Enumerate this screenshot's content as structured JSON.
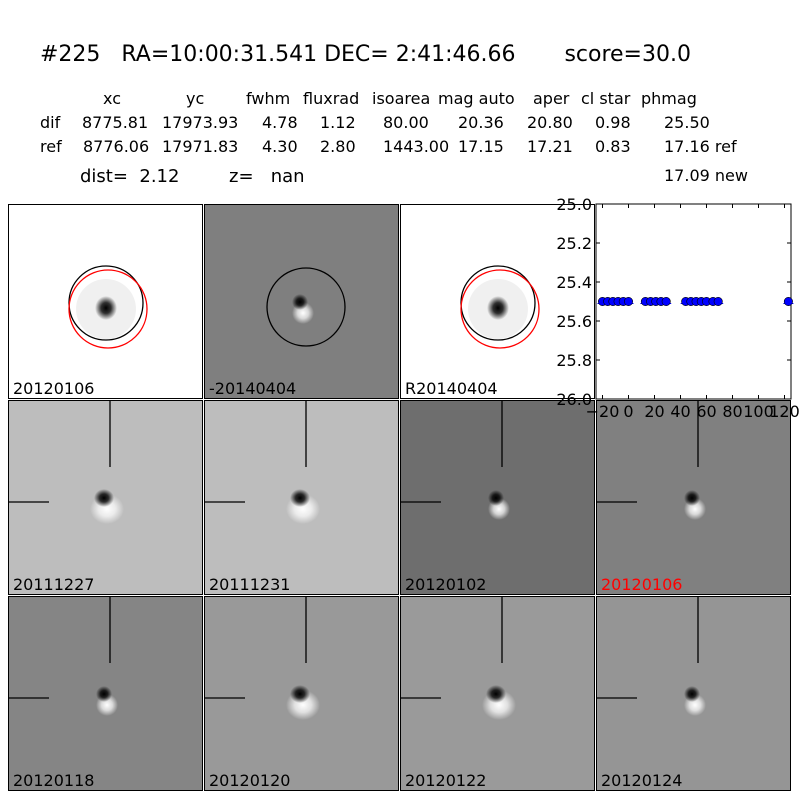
{
  "header": {
    "title": "#225   RA=10:00:31.541 DEC= 2:41:46.66       score=30.0",
    "columns": [
      "xc",
      "yc",
      "fwhm",
      "fluxrad",
      "isoarea",
      "mag auto",
      "aper",
      "cl star",
      "phmag"
    ],
    "rows": [
      {
        "label": "dif",
        "values": [
          "8775.81",
          "17973.93",
          "4.78",
          "1.12",
          "80.00",
          "20.36",
          "20.80",
          "0.98",
          "25.50"
        ]
      },
      {
        "label": "ref",
        "values": [
          "8776.06",
          "17971.83",
          "4.30",
          "2.80",
          "1443.00",
          "17.15",
          "17.21",
          "0.83",
          "17.16 ref"
        ]
      }
    ],
    "extra_phmag": "17.09 new",
    "dist_text": "dist=  2.12",
    "z_text": "z=   nan"
  },
  "panels": [
    {
      "label": "20120106",
      "bg": "#ffffff",
      "circles": "both",
      "marker": "dark",
      "crosshair": false
    },
    {
      "label": "-20140404",
      "bg": "#7f7f7f",
      "circles": "black",
      "marker": "dipole",
      "crosshair": false
    },
    {
      "label": "R20140404",
      "bg": "#ffffff",
      "circles": "both",
      "marker": "dark",
      "crosshair": false
    },
    {
      "label": "20111227",
      "bg": "#bdbdbd",
      "circles": "none",
      "marker": "dipole-wide",
      "crosshair": true
    },
    {
      "label": "20111231",
      "bg": "#bdbdbd",
      "circles": "none",
      "marker": "dipole-wide",
      "crosshair": true
    },
    {
      "label": "20120102",
      "bg": "#6e6e6e",
      "circles": "none",
      "marker": "dipole",
      "crosshair": true
    },
    {
      "label": "20120106",
      "bg": "#808080",
      "circles": "none",
      "marker": "dipole",
      "crosshair": true,
      "highlight": "#ff0000"
    },
    {
      "label": "20120118",
      "bg": "#858585",
      "circles": "none",
      "marker": "dipole",
      "crosshair": true
    },
    {
      "label": "20120120",
      "bg": "#999999",
      "circles": "none",
      "marker": "dipole-wide",
      "crosshair": true
    },
    {
      "label": "20120122",
      "bg": "#9a9a9a",
      "circles": "none",
      "marker": "dipole-wide",
      "crosshair": true
    },
    {
      "label": "20120124",
      "bg": "#959595",
      "circles": "none",
      "marker": "dipole",
      "crosshair": true
    }
  ],
  "chart_data": {
    "type": "scatter",
    "title": "",
    "xlabel": "",
    "ylabel": "",
    "xlim": [
      -25,
      125
    ],
    "ylim": [
      26.0,
      25.0
    ],
    "y_inverted": true,
    "x_ticks": [
      "-20",
      "0",
      "20",
      "40",
      "60",
      "80",
      "100",
      "120"
    ],
    "x_tick_values": [
      -20,
      0,
      20,
      40,
      60,
      80,
      100,
      120
    ],
    "y_ticks": [
      "25.0",
      "25.2",
      "25.4",
      "25.6",
      "25.8",
      "26.0"
    ],
    "y_tick_values": [
      25.0,
      25.2,
      25.4,
      25.6,
      25.8,
      26.0
    ],
    "marker_color": "#0000ff",
    "series": [
      {
        "x": [
          -20,
          -16,
          -12,
          -8,
          -4,
          0,
          13,
          17,
          21,
          25,
          29,
          44,
          48,
          52,
          56,
          60,
          65,
          69,
          123
        ],
        "y": [
          25.5,
          25.5,
          25.5,
          25.5,
          25.5,
          25.5,
          25.5,
          25.5,
          25.5,
          25.5,
          25.5,
          25.5,
          25.5,
          25.5,
          25.5,
          25.5,
          25.5,
          25.5,
          25.5
        ]
      }
    ]
  }
}
